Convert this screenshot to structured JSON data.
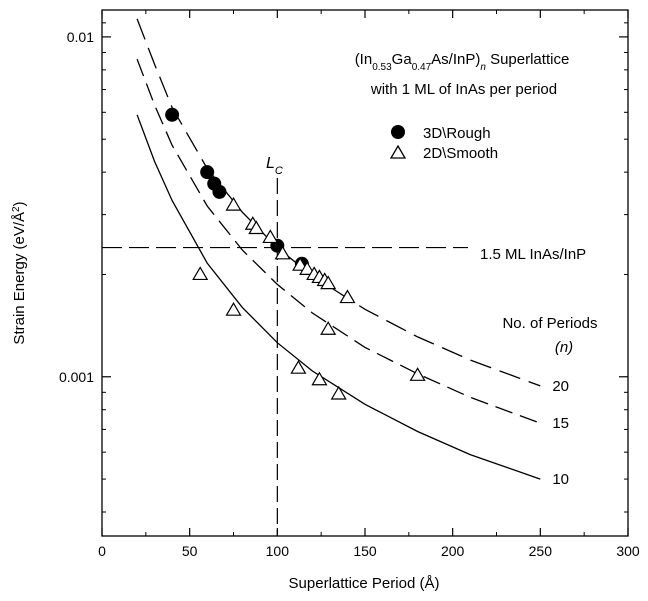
{
  "chart_data": {
    "type": "scatter",
    "title_lines": [
      "(In0.53Ga0.47As/InP)n Superlattice",
      "with 1 ML of InAs per period"
    ],
    "xlabel": "Superlattice Period (Å)",
    "ylabel": "Strain Energy (eV/Å²)",
    "xlim": [
      0,
      300
    ],
    "ylim": [
      0.00034,
      0.012
    ],
    "yscale": "log",
    "x_ticks": [
      "0",
      "50",
      "100",
      "150",
      "200",
      "250",
      "300"
    ],
    "y_tick_labels": [
      "0.01",
      "0.001"
    ],
    "legend": {
      "filled": "3D\\Rough",
      "open": "2D\\Smooth"
    },
    "reference_lines": {
      "vertical": {
        "x": 100,
        "label": "L",
        "label_sub": "C"
      },
      "horizontal": {
        "y": 0.0024,
        "label": "1.5 ML InAs/InP"
      }
    },
    "periods_label": [
      "No. of Periods",
      "(n)"
    ],
    "series": [
      {
        "name": "20",
        "style": "long-dash",
        "label": "20",
        "x": [
          20,
          30,
          40,
          60,
          80,
          100,
          120,
          150,
          180,
          210,
          250
        ],
        "y": [
          0.0113,
          0.0083,
          0.0062,
          0.0041,
          0.00305,
          0.0024,
          0.00198,
          0.00158,
          0.00131,
          0.00112,
          0.00094
        ]
      },
      {
        "name": "15",
        "style": "dash",
        "label": "15",
        "x": [
          20,
          30,
          40,
          60,
          80,
          100,
          120,
          150,
          180,
          210,
          250
        ],
        "y": [
          0.0086,
          0.0063,
          0.0048,
          0.00318,
          0.00236,
          0.00187,
          0.00154,
          0.00122,
          0.00102,
          0.00087,
          0.00073
        ]
      },
      {
        "name": "10",
        "style": "solid",
        "label": "10",
        "x": [
          20,
          30,
          40,
          60,
          80,
          100,
          120,
          150,
          180,
          210,
          250
        ],
        "y": [
          0.0059,
          0.0043,
          0.0033,
          0.00216,
          0.0016,
          0.00126,
          0.00104,
          0.00083,
          0.00069,
          0.00059,
          0.0005
        ]
      }
    ],
    "points_3d_rough": {
      "x": [
        40,
        60,
        64,
        67,
        100,
        114
      ],
      "y": [
        0.0059,
        0.004,
        0.0037,
        0.0035,
        0.00243,
        0.00215
      ]
    },
    "points_2d_smooth": {
      "x": [
        56,
        75,
        75,
        86,
        88,
        96,
        103,
        113,
        117,
        121,
        124,
        127,
        129,
        140,
        129,
        180,
        112,
        124,
        135
      ],
      "y": [
        0.002,
        0.00157,
        0.0032,
        0.00281,
        0.00273,
        0.00257,
        0.0023,
        0.00213,
        0.00207,
        0.002,
        0.00196,
        0.00192,
        0.00188,
        0.00171,
        0.00138,
        0.00101,
        0.00106,
        0.00098,
        0.00089
      ]
    }
  }
}
